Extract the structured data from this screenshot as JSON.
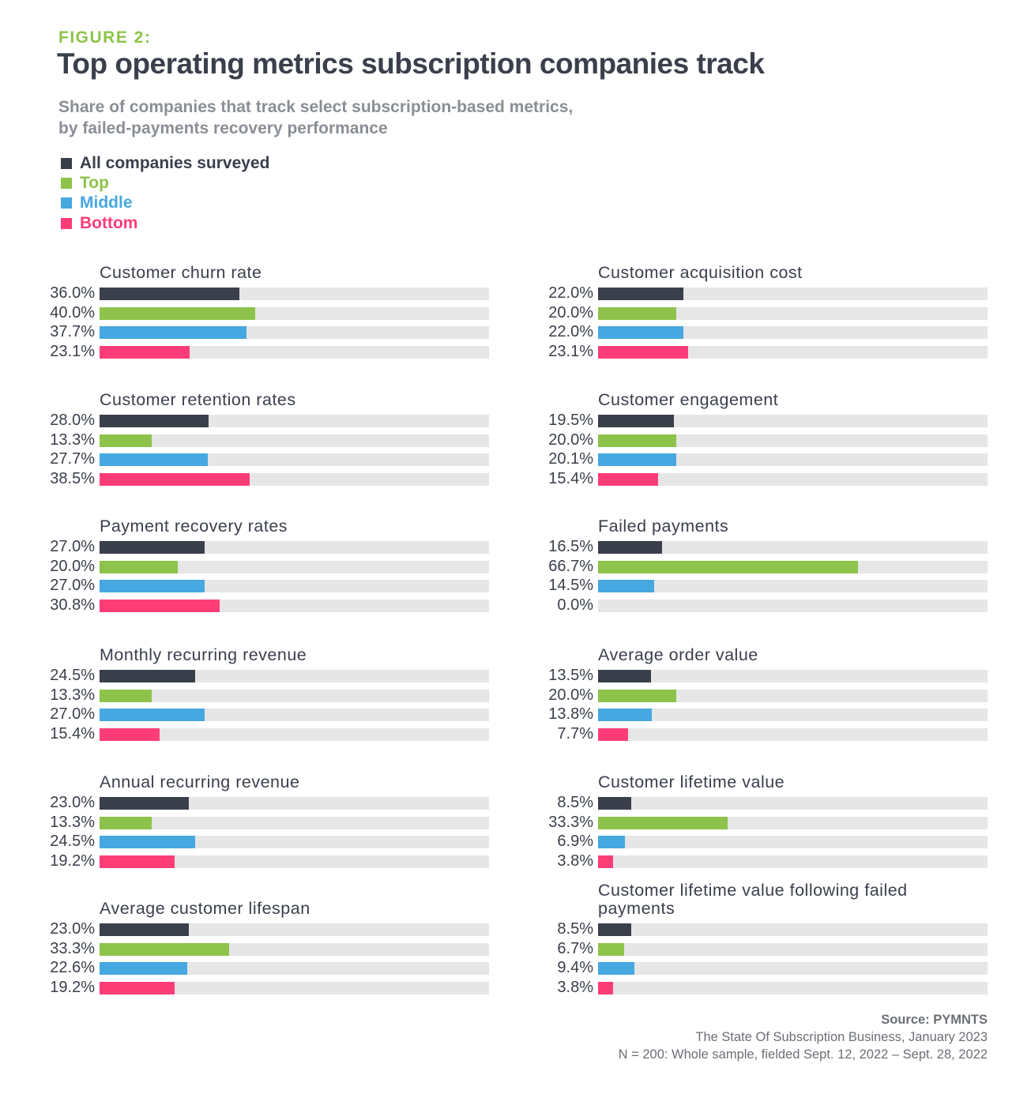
{
  "figure_label": "FIGURE 2:",
  "title": "Top operating metrics subscription companies track",
  "subtitle_lines": [
    "Share of companies that track select subscription-based metrics,",
    "by failed-payments recovery performance"
  ],
  "source": {
    "label": "Source: PYMNTS",
    "line1": "The State Of Subscription Business, January 2023",
    "line2": "N = 200: Whole sample, fielded Sept. 12, 2022 – Sept. 28, 2022"
  },
  "chart_data": {
    "type": "bar",
    "orientation": "horizontal",
    "xlim": [
      0,
      100
    ],
    "unit": "%",
    "legend": [
      {
        "name": "All companies surveyed",
        "color": "#3a3f4b"
      },
      {
        "name": "Top",
        "color": "#8dc34a"
      },
      {
        "name": "Middle",
        "color": "#45a8e0"
      },
      {
        "name": "Bottom",
        "color": "#fe3d78"
      }
    ],
    "legend_placement": "top-left",
    "track_color": "#e6e6e6",
    "panels": [
      {
        "title": "Customer churn rate",
        "values": [
          36.0,
          40.0,
          37.7,
          23.1
        ],
        "labels": [
          "36.0%",
          "40.0%",
          "37.7%",
          "23.1%"
        ]
      },
      {
        "title": "Customer acquisition cost",
        "values": [
          22.0,
          20.0,
          22.0,
          23.1
        ],
        "labels": [
          "22.0%",
          "20.0%",
          "22.0%",
          "23.1%"
        ]
      },
      {
        "title": "Customer retention rates",
        "values": [
          28.0,
          13.3,
          27.7,
          38.5
        ],
        "labels": [
          "28.0%",
          "13.3%",
          "27.7%",
          "38.5%"
        ]
      },
      {
        "title": "Customer engagement",
        "values": [
          19.5,
          20.0,
          20.1,
          15.4
        ],
        "labels": [
          "19.5%",
          "20.0%",
          "20.1%",
          "15.4%"
        ]
      },
      {
        "title": "Payment recovery rates",
        "values": [
          27.0,
          20.0,
          27.0,
          30.8
        ],
        "labels": [
          "27.0%",
          "20.0%",
          "27.0%",
          "30.8%"
        ]
      },
      {
        "title": "Failed payments",
        "values": [
          16.5,
          66.7,
          14.5,
          0.0
        ],
        "labels": [
          "16.5%",
          "66.7%",
          "14.5%",
          "0.0%"
        ]
      },
      {
        "title": "Monthly recurring revenue",
        "values": [
          24.5,
          13.3,
          27.0,
          15.4
        ],
        "labels": [
          "24.5%",
          "13.3%",
          "27.0%",
          "15.4%"
        ]
      },
      {
        "title": "Average order value",
        "values": [
          13.5,
          20.0,
          13.8,
          7.7
        ],
        "labels": [
          "13.5%",
          "20.0%",
          "13.8%",
          "7.7%"
        ]
      },
      {
        "title": "Annual recurring revenue",
        "values": [
          23.0,
          13.3,
          24.5,
          19.2
        ],
        "labels": [
          "23.0%",
          "13.3%",
          "24.5%",
          "19.2%"
        ]
      },
      {
        "title": "Customer lifetime value",
        "values": [
          8.5,
          33.3,
          6.9,
          3.8
        ],
        "labels": [
          "8.5%",
          "33.3%",
          "6.9%",
          "3.8%"
        ]
      },
      {
        "title": "Average customer lifespan",
        "values": [
          23.0,
          33.3,
          22.6,
          19.2
        ],
        "labels": [
          "23.0%",
          "33.3%",
          "22.6%",
          "19.2%"
        ]
      },
      {
        "title_lines": [
          "Customer lifetime value following failed",
          "payments"
        ],
        "values": [
          8.5,
          6.7,
          9.4,
          3.8
        ],
        "labels": [
          "8.5%",
          "6.7%",
          "9.4%",
          "3.8%"
        ]
      }
    ]
  }
}
